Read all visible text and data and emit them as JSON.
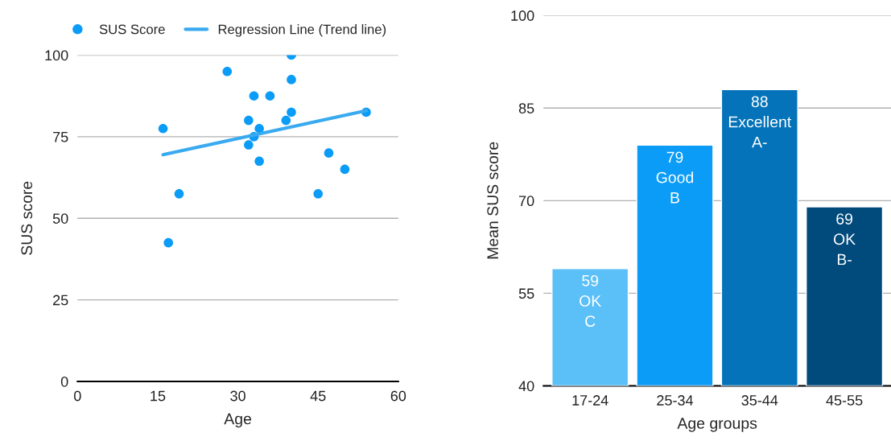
{
  "chart_data": [
    {
      "type": "scatter",
      "xlabel": "Age",
      "ylabel": "SUS score",
      "xlim": [
        0,
        60
      ],
      "xticks": [
        0,
        15,
        30,
        45,
        60
      ],
      "ylim": [
        0,
        100
      ],
      "yticks": [
        0,
        25,
        50,
        75,
        100
      ],
      "grid": "y",
      "legend": "top",
      "series": [
        {
          "name": "SUS Score",
          "type": "scatter",
          "marker": "circle",
          "color": "#0a9cf7",
          "x": [
            16,
            17,
            19,
            28,
            33,
            36,
            32,
            34,
            33,
            32,
            34,
            40,
            40,
            40,
            39,
            47,
            50,
            45,
            54
          ],
          "values": [
            77.5,
            42.5,
            57.5,
            95,
            87.5,
            87.5,
            80,
            77.5,
            75,
            72.5,
            67.5,
            100,
            92.5,
            82.5,
            80,
            70,
            65,
            57.5,
            82.5
          ]
        },
        {
          "name": "Regression Line (Trend line)",
          "type": "line",
          "marker": "none",
          "color": "#3aaaf0",
          "x": [
            16,
            54
          ],
          "values": [
            69.5,
            83
          ]
        }
      ]
    },
    {
      "type": "bar",
      "xlabel": "Age groups",
      "ylabel": "Mean SUS score",
      "categories": [
        "17-24",
        "25-34",
        "35-44",
        "45-55"
      ],
      "values": [
        59,
        79,
        88,
        69
      ],
      "colors": [
        "#5bbff8",
        "#0a9cf7",
        "#0473b9",
        "#004a7c"
      ],
      "ylim": [
        40,
        100
      ],
      "yticks": [
        40,
        55,
        70,
        85,
        100
      ],
      "grid": "y",
      "value_labels": [
        "59\nOK\nC",
        "79\nGood\nB",
        "88\nExcellent\nA-",
        "69\nOK\nB-"
      ]
    }
  ]
}
